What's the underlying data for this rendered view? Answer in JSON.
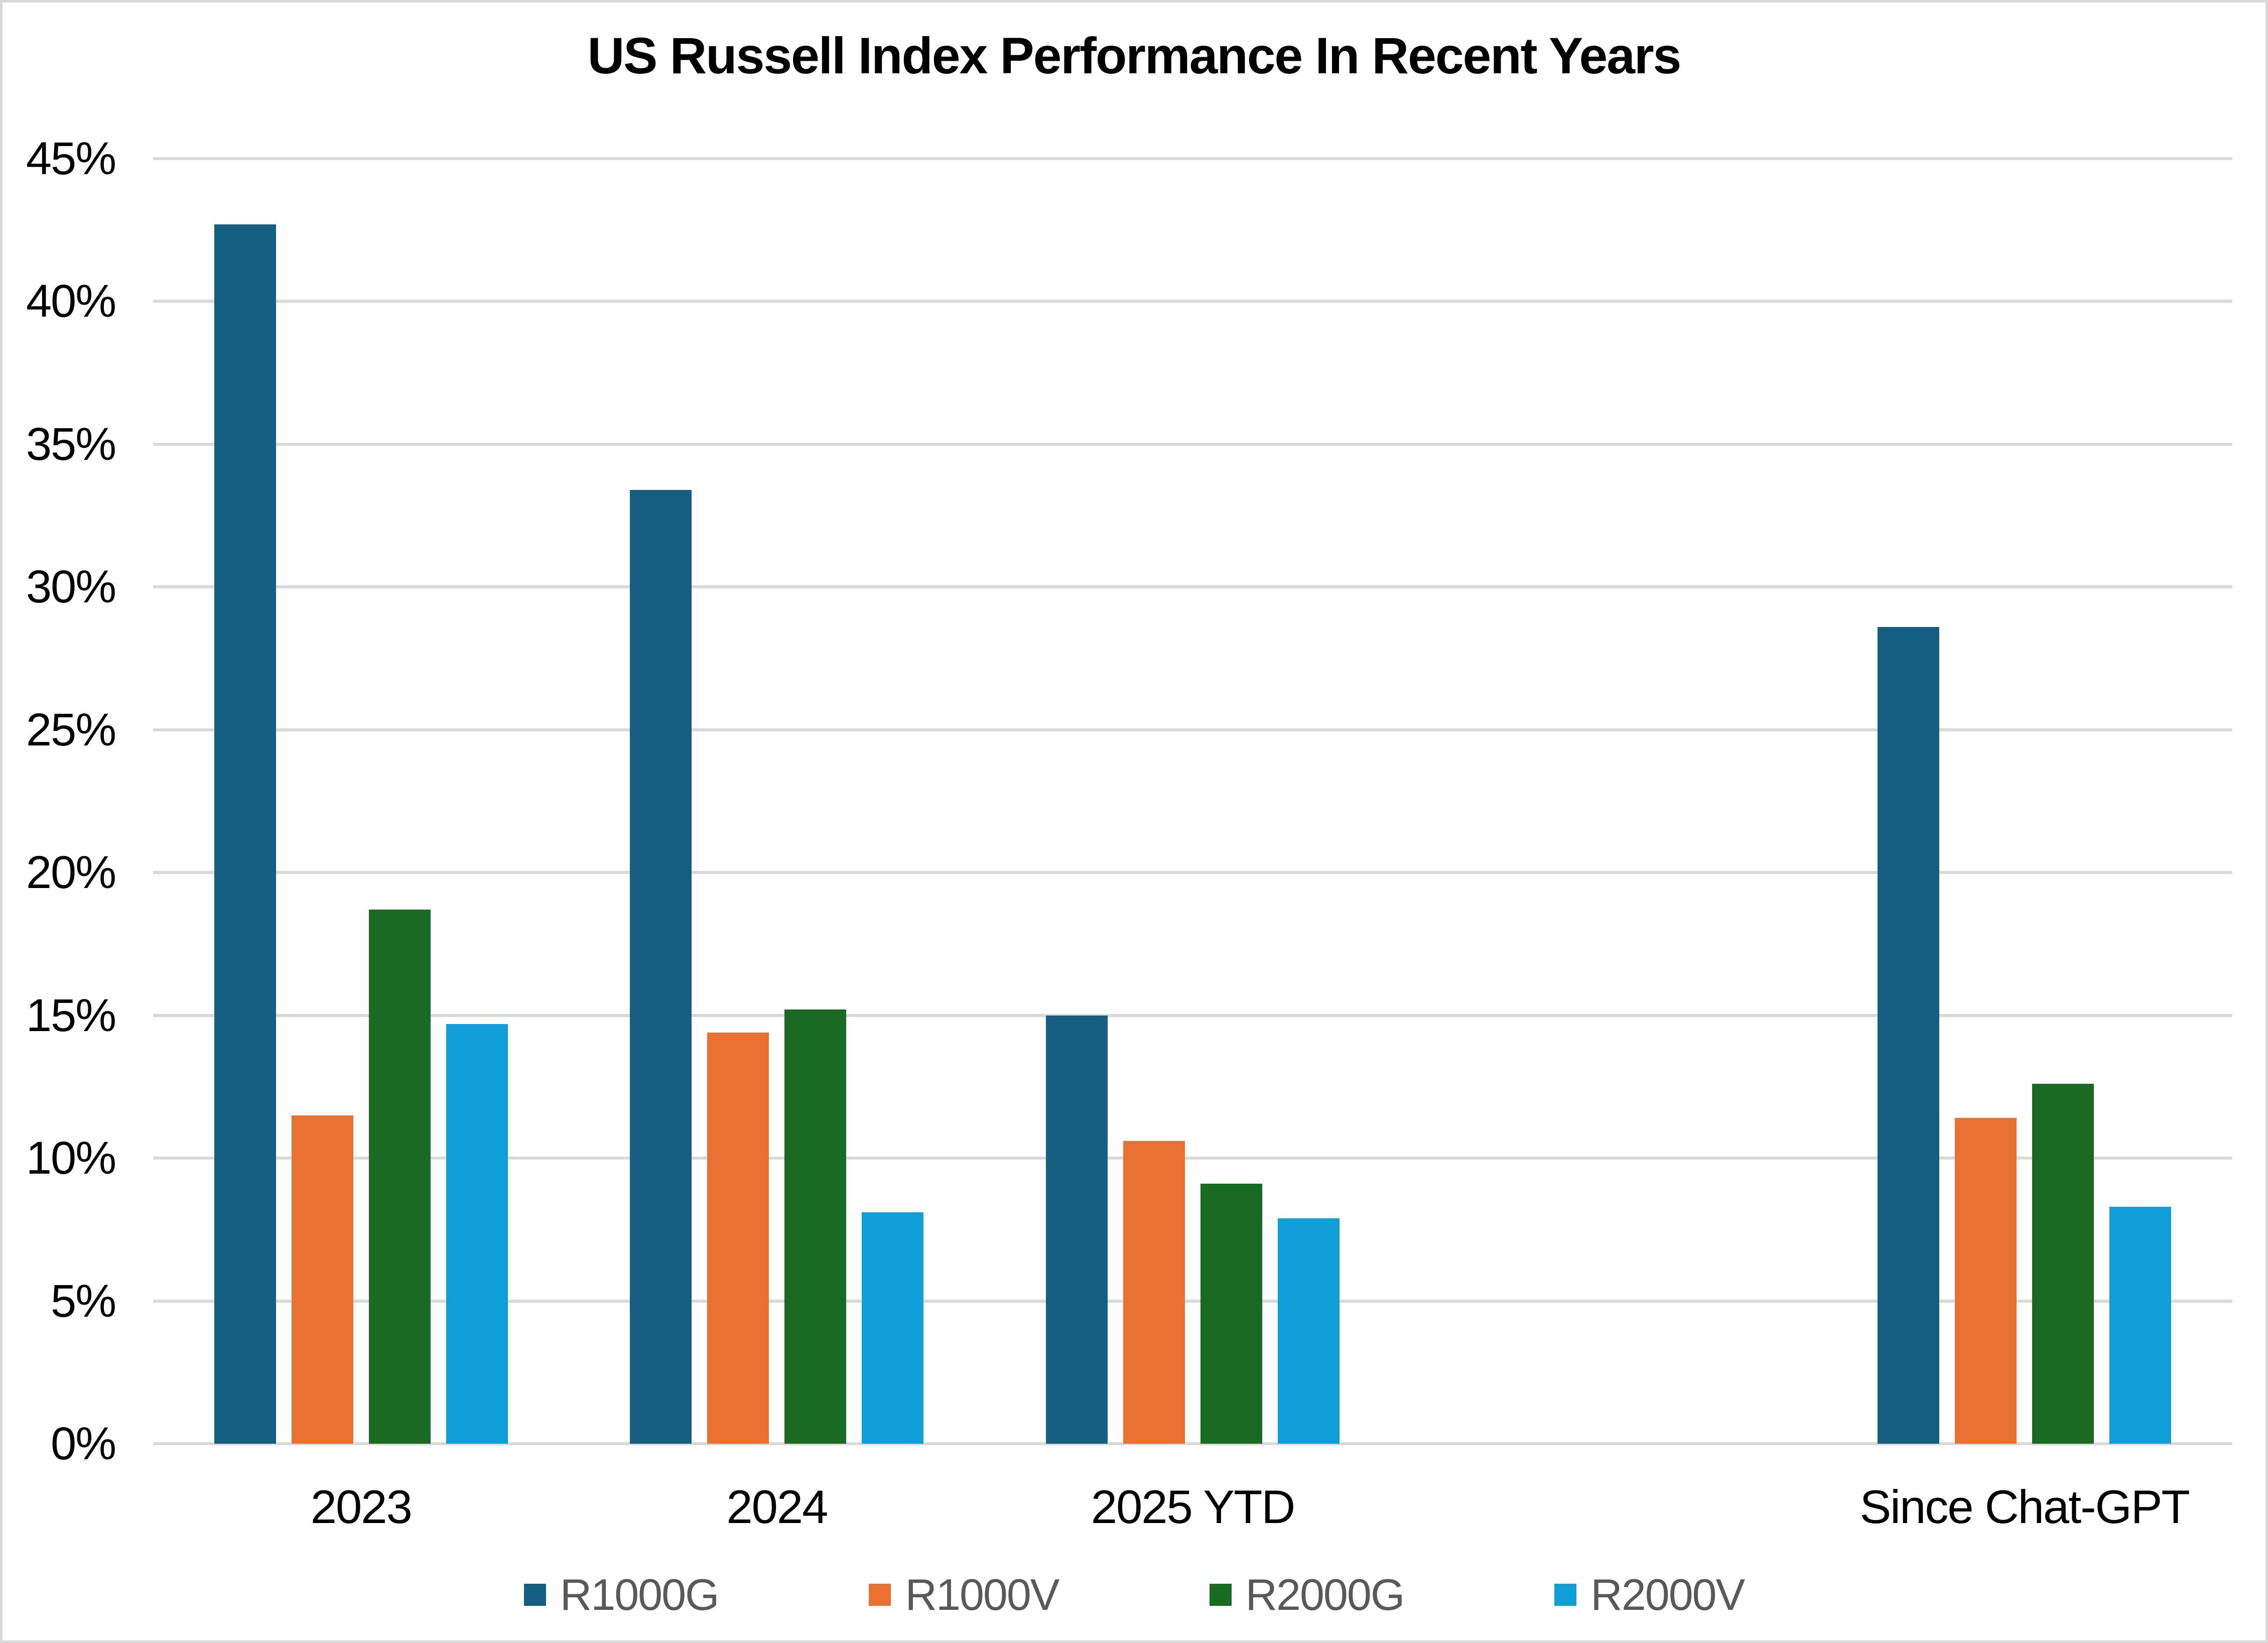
{
  "title": "US Russell Index Performance In Recent Years",
  "chart_data": {
    "type": "bar",
    "categories": [
      "2023",
      "2024",
      "2025 YTD",
      "",
      "Since Chat-GPT"
    ],
    "series": [
      {
        "name": "R1000G",
        "color": "#156082",
        "values": [
          42.7,
          33.4,
          15.0,
          null,
          28.6
        ]
      },
      {
        "name": "R1000V",
        "color": "#E97132",
        "values": [
          11.5,
          14.4,
          10.6,
          null,
          11.4
        ]
      },
      {
        "name": "R2000G",
        "color": "#196B24",
        "values": [
          18.7,
          15.2,
          9.1,
          null,
          12.6
        ]
      },
      {
        "name": "R2000V",
        "color": "#0F9ED5",
        "values": [
          14.7,
          8.1,
          7.9,
          null,
          8.3
        ]
      }
    ],
    "ylim": [
      0,
      45
    ],
    "ytick_step": 5,
    "ytick_suffix": "%",
    "grid": true,
    "legend_position": "bottom",
    "styles": {
      "background": "#FFFFFF",
      "border_color": "#D9D9D9",
      "grid_color": "#D9D9D9",
      "axis_line_color": "#D9D9D9",
      "title_color": "#000000",
      "axis_text_color": "#000000",
      "legend_text_color": "#595959"
    }
  }
}
